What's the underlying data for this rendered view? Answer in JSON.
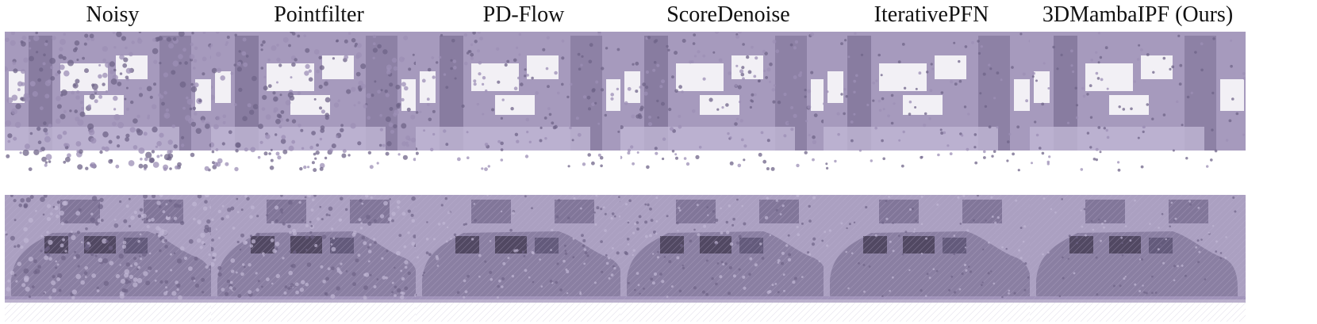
{
  "figure": {
    "columns": [
      {
        "id": "noisy",
        "title": "Noisy"
      },
      {
        "id": "pointfilter",
        "title": "Pointfilter"
      },
      {
        "id": "pdflow",
        "title": "PD-Flow"
      },
      {
        "id": "scoredenoise",
        "title": "ScoreDenoise"
      },
      {
        "id": "iterativepfn",
        "title": "IterativePFN"
      },
      {
        "id": "ours",
        "title": "3DMambaIPF (Ours)"
      }
    ],
    "colors": {
      "point": "#9c8fb6",
      "point_dark": "#6f6488",
      "point_light": "#c0b6d4",
      "background": "#ffffff"
    }
  }
}
